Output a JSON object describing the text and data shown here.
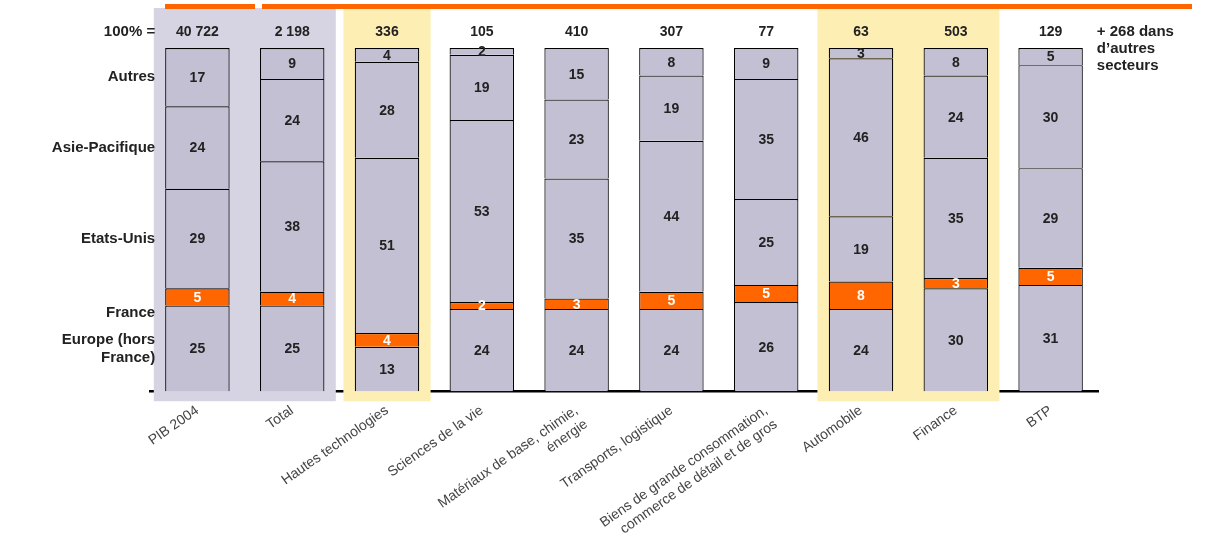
{
  "chart_data": {
    "type": "bar",
    "stacked": true,
    "legend": false,
    "data_labels": true,
    "tick_labels": "x",
    "categories": [
      "PIB 2004",
      "Total",
      "Hautes technologies",
      "Sciences de la vie",
      "Matériaux de base, chimie, énergie",
      "Transports, logistique",
      "Biens de grande consommation, commerce de détail et de gros",
      "Automobile",
      "Finance",
      "BTP"
    ],
    "series": [
      {
        "name": "Europe (hors France)",
        "color": "#c3c0d3",
        "values": [
          25,
          25,
          13,
          24,
          24,
          24,
          26,
          24,
          30,
          31
        ]
      },
      {
        "name": "France",
        "color": "#ff6600",
        "values": [
          5,
          4,
          4,
          2,
          3,
          5,
          5,
          8,
          3,
          5
        ]
      },
      {
        "name": "Etats-Unis",
        "color": "#c3c0d3",
        "values": [
          29,
          38,
          51,
          53,
          35,
          44,
          25,
          19,
          35,
          29
        ]
      },
      {
        "name": "Asie-Pacifique",
        "color": "#c3c0d3",
        "values": [
          24,
          24,
          28,
          19,
          23,
          19,
          35,
          46,
          24,
          30
        ]
      },
      {
        "name": "Autres",
        "color": "#c3c0d3",
        "values": [
          17,
          9,
          4,
          2,
          15,
          8,
          9,
          3,
          8,
          5
        ]
      }
    ],
    "bands": [
      {
        "axis": "x",
        "from": "PIB 2004",
        "to": "Total",
        "color": "#d6d4e2"
      },
      {
        "axis": "x",
        "from": "Hautes technologies",
        "to": "Hautes technologies",
        "color": "#fdeeb4"
      },
      {
        "axis": "x",
        "from": "Automobile",
        "to": "Finance",
        "color": "#fdeeb4"
      }
    ],
    "annotations": [
      "100% =",
      {
        "text": "40 722",
        "x": "PIB 2004",
        "y": 100
      },
      {
        "text": "2 198",
        "x": "Total",
        "y": 100
      },
      {
        "text": "336",
        "x": "Hautes technologies",
        "y": 100
      },
      {
        "text": "105",
        "x": "Sciences de la vie",
        "y": 100
      },
      {
        "text": "410",
        "x": "Matériaux de base, chimie, énergie",
        "y": 100
      },
      {
        "text": "307",
        "x": "Transports, logistique",
        "y": 100
      },
      {
        "text": "77",
        "x": "Biens de grande consommation, commerce de détail et de gros",
        "y": 100
      },
      {
        "text": "63",
        "x": "Automobile",
        "y": 100
      },
      {
        "text": "503",
        "x": "Finance",
        "y": 100
      },
      {
        "text": "129",
        "x": "BTP",
        "y": 100
      },
      "+ 268 dans d’autres secteurs"
    ]
  }
}
